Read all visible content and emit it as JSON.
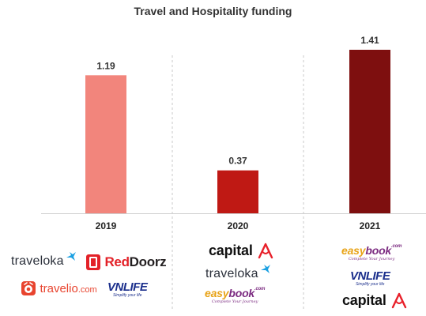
{
  "chart_data": {
    "type": "bar",
    "title": "Travel and Hospitality funding",
    "categories": [
      "2019",
      "2020",
      "2021"
    ],
    "values": [
      1.19,
      0.37,
      1.41
    ],
    "value_labels": [
      "1.19",
      "0.37",
      "1.41"
    ],
    "bar_colors": [
      "#f2857c",
      "#bf1914",
      "#7e0f0f"
    ],
    "grid": false,
    "legend": "none"
  },
  "logos": {
    "2019": [
      {
        "id": "traveloka",
        "text": "traveloka"
      },
      {
        "id": "reddoorz",
        "text": "RedDoorz",
        "red_part": "Red",
        "doorz_part": "Doorz"
      },
      {
        "id": "travelio",
        "text": "travelio.com",
        "main": "travelio",
        "domain": ".com"
      },
      {
        "id": "vnlife",
        "text": "VNLIFE",
        "tagline": "Simplify your life"
      }
    ],
    "2020": [
      {
        "id": "capital-a",
        "text": "capital"
      },
      {
        "id": "traveloka",
        "text": "traveloka"
      },
      {
        "id": "easybook",
        "text": "easybook.com",
        "easy": "easy",
        "book": "book",
        "com": ".com",
        "tagline": "Complete Your Journey"
      }
    ],
    "2021": [
      {
        "id": "easybook",
        "text": "easybook.com",
        "easy": "easy",
        "book": "book",
        "com": ".com",
        "tagline": "Complete Your Journey"
      },
      {
        "id": "vnlife",
        "text": "VNLIFE",
        "tagline": "Simplify your life"
      },
      {
        "id": "capital-a",
        "text": "capital"
      }
    ]
  },
  "colors": {
    "traveloka_bird": "#1ba0e2",
    "reddoorz_red": "#e32128",
    "travelio_orange": "#e8442f",
    "vnlife_blue": "#1b2f8c",
    "capital_a_red": "#e8202a",
    "easybook_orange": "#e8a317",
    "easybook_purple": "#7b2a80"
  }
}
